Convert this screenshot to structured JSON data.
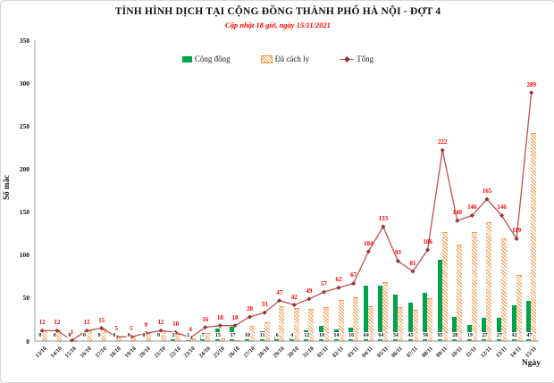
{
  "header": {
    "title": "TÌNH HÌNH DỊCH TẠI CỘNG ĐỒNG THÀNH PHỐ HÀ NỘI - ĐỢT 4",
    "subtitle": "Cập nhật 18 giờ, ngày 15/11/2021"
  },
  "legend": {
    "items": [
      {
        "label": "Cộng đồng"
      },
      {
        "label": "Đã cách ly"
      },
      {
        "label": "Tổng"
      }
    ]
  },
  "axes": {
    "y_title": "Số mắc",
    "x_title": "Ngày"
  },
  "colors": {
    "community_green": "#00A14B",
    "quarantine_orange": "#F79646",
    "total_line": "#C0504D",
    "total_marker": "#943634",
    "total_label_red": "#FF0000",
    "axis_gray": "#9a9a9a",
    "base_label_black": "#151515"
  },
  "chart_data": {
    "type": "bar",
    "title": "TÌNH HÌNH DỊCH TẠI CỘNG ĐỒNG THÀNH PHỐ HÀ NỘI - ĐỢT 4",
    "subtitle": "Cập nhật 18 giờ, ngày 15/11/2021",
    "xlabel": "Ngày",
    "ylabel": "Số mắc",
    "ylim": [
      0,
      350
    ],
    "yticks": [
      0,
      50,
      100,
      150,
      200,
      250,
      300,
      350
    ],
    "grid": false,
    "legend_position": "top",
    "categories": [
      "13/10",
      "14/10",
      "15/10",
      "16/10",
      "17/10",
      "18/10",
      "19/10",
      "20/10",
      "21/10",
      "22/10",
      "23/10",
      "24/10",
      "25/10",
      "26/10",
      "27/10",
      "28/10",
      "29/10",
      "30/10",
      "31/10",
      "01/11",
      "02/11",
      "03/11",
      "04/11",
      "05/11",
      "06/11",
      "07/11",
      "08/11",
      "09/11",
      "10/11",
      "11/11",
      "12/11",
      "13/11",
      "14/11",
      "15/11"
    ],
    "series": [
      {
        "name": "Cộng đồng",
        "type": "bar",
        "color": "#00A14B",
        "label_color": "#151515",
        "labels_shown": true,
        "values": [
          0,
          0,
          0,
          0,
          0,
          0,
          0,
          0,
          0,
          2,
          1,
          7,
          15,
          17,
          10,
          11,
          6,
          4,
          12,
          18,
          14,
          16,
          64,
          64,
          54,
          45,
          56,
          95,
          28,
          19,
          27,
          27,
          42,
          47
        ]
      },
      {
        "name": "Đã cách ly",
        "type": "bar",
        "hatch": true,
        "color": "#F79646",
        "labels_shown": false,
        "values": [
          12,
          12,
          1,
          12,
          15,
          5,
          5,
          9,
          12,
          8,
          3,
          9,
          3,
          1,
          18,
          22,
          41,
          38,
          37,
          39,
          48,
          51,
          40,
          69,
          39,
          36,
          50,
          127,
          112,
          127,
          138,
          119,
          77,
          242
        ]
      },
      {
        "name": "Tổng",
        "type": "line",
        "color": "#C0504D",
        "marker_color": "#943634",
        "label_color": "#FF0000",
        "labels_shown": true,
        "values": [
          12,
          12,
          1,
          12,
          15,
          5,
          5,
          9,
          12,
          10,
          4,
          16,
          18,
          18,
          28,
          33,
          47,
          42,
          49,
          57,
          62,
          67,
          104,
          133,
          93,
          81,
          106,
          222,
          140,
          146,
          165,
          146,
          119,
          289
        ]
      }
    ]
  }
}
